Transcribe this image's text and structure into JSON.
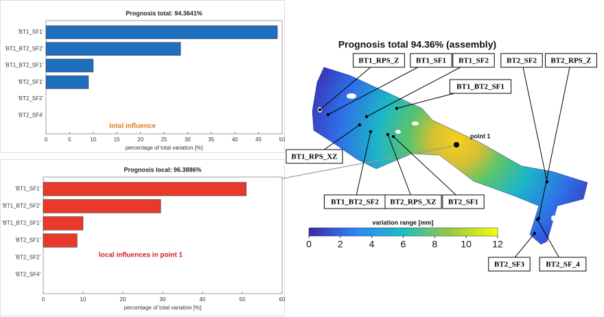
{
  "chart_data": [
    {
      "type": "hbar",
      "title": "Prognosis total: 94.3641%",
      "categories": [
        "'BT1_SF1'",
        "'BT1_BT2_SF2'",
        "'BT1_BT2_SF1'",
        "'BT2_SF1'",
        "'BT2_SF2'",
        "'BT2_SF4'"
      ],
      "values": [
        49,
        28.5,
        10,
        9,
        0,
        0
      ],
      "color": "#1f6fbf",
      "xlim": [
        0,
        50
      ],
      "xticks": [
        0,
        5,
        10,
        15,
        20,
        25,
        30,
        35,
        40,
        45,
        50
      ],
      "xlabel": "percentage of total variation [%]",
      "annotation": "total influence",
      "annotation_color": "#e07b20"
    },
    {
      "type": "hbar",
      "title": "Prognosis local: 96.3886%",
      "categories": [
        "'BT1_SF1'",
        "'BT1_BT2_SF2'",
        "'BT1_BT2_SF1'",
        "'BT2_SF1'",
        "'BT2_SF2'",
        "'BT2_SF4'"
      ],
      "values": [
        51,
        29.5,
        10,
        8.5,
        0,
        0
      ],
      "color": "#e8392a",
      "xlim": [
        0,
        60
      ],
      "xticks": [
        0,
        10,
        20,
        30,
        40,
        50,
        60
      ],
      "xlabel": "percentage of total variation [%]",
      "annotation": "local influences in point 1",
      "annotation_color": "#d42020"
    }
  ],
  "diagram": {
    "title": "Prognosis total 94.36% (assembly)",
    "callouts": [
      "BT1_RPS_Z",
      "BT1_SF1",
      "BT1_SF2",
      "BT2_SF2",
      "BT2_RPS_Z",
      "BT1_BT2_SF1",
      "BT1_RPS_XZ",
      "BT1_BT2_SF2",
      "BT2_RPS_XZ",
      "BT2_SF1",
      "BT2_SF3",
      "BT2_SF_4"
    ],
    "point_label": "point 1",
    "colorbar": {
      "label": "variation range [mm]",
      "lim": [
        0,
        12
      ],
      "ticks": [
        0,
        2,
        4,
        6,
        8,
        10,
        12
      ]
    }
  }
}
